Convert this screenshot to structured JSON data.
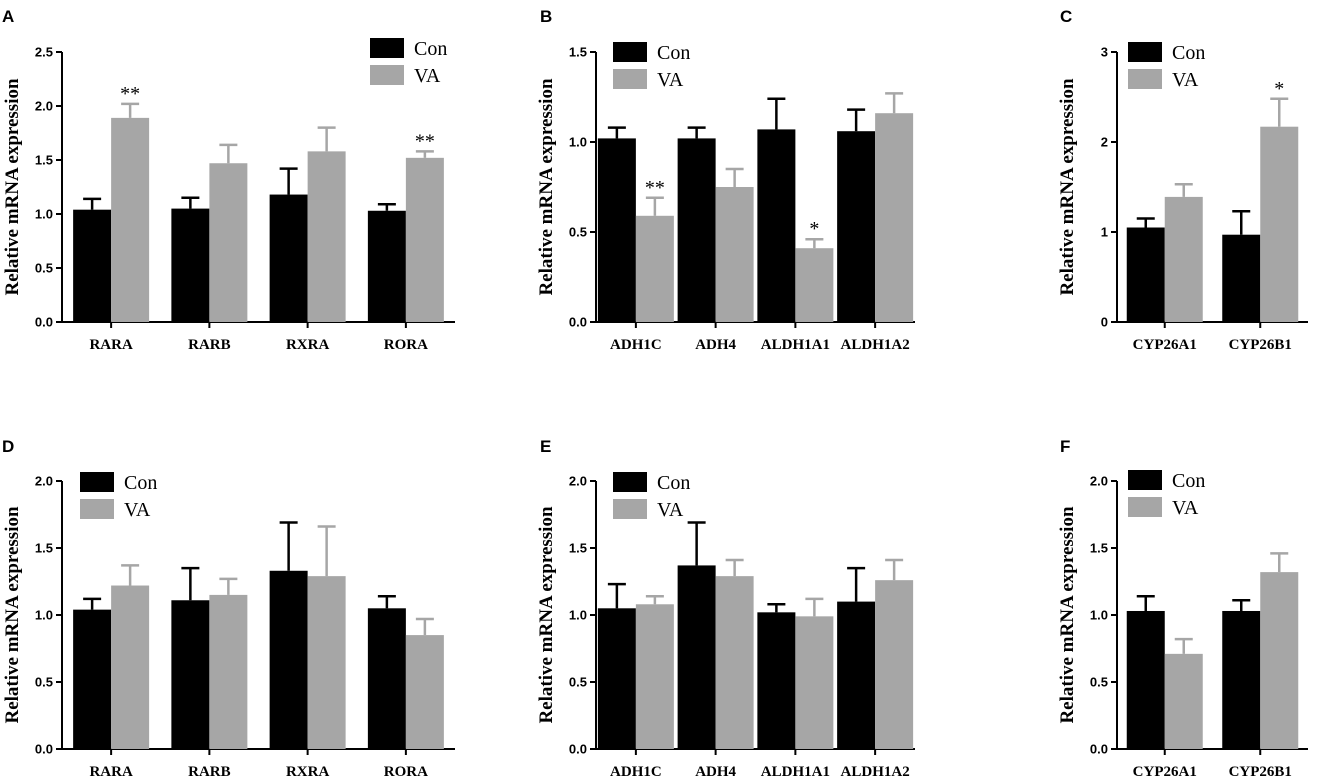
{
  "colors": {
    "con": "#000000",
    "va": "#a6a6a6"
  },
  "chart_data": [
    {
      "type": "bar",
      "panel": "A",
      "ylabel": "Relative mRNA expression",
      "categories": [
        "RARA",
        "RARB",
        "RXRA",
        "RORA"
      ],
      "ylim": [
        0,
        2.5
      ],
      "yticks": [
        "0.0",
        "0.5",
        "1.0",
        "1.5",
        "2.0",
        "2.5"
      ],
      "legend_position": "top-right",
      "series": [
        {
          "name": "Con",
          "values": [
            1.04,
            1.05,
            1.18,
            1.03
          ],
          "errors": [
            0.1,
            0.1,
            0.24,
            0.06
          ]
        },
        {
          "name": "VA",
          "values": [
            1.89,
            1.47,
            1.58,
            1.52
          ],
          "errors": [
            0.13,
            0.17,
            0.22,
            0.06
          ]
        }
      ],
      "annotations": [
        {
          "category": 0,
          "series": 1,
          "text": "**"
        },
        {
          "category": 3,
          "series": 1,
          "text": "**"
        }
      ]
    },
    {
      "type": "bar",
      "panel": "B",
      "ylabel": "Relative mRNA expression",
      "categories": [
        "ADH1C",
        "ADH4",
        "ALDH1A1",
        "ALDH1A2"
      ],
      "ylim": [
        0,
        1.5
      ],
      "yticks": [
        "0.0",
        "0.5",
        "1.0",
        "1.5"
      ],
      "legend_position": "top-left",
      "series": [
        {
          "name": "Con",
          "values": [
            1.02,
            1.02,
            1.07,
            1.06
          ],
          "errors": [
            0.06,
            0.06,
            0.17,
            0.12
          ]
        },
        {
          "name": "VA",
          "values": [
            0.59,
            0.75,
            0.41,
            1.16
          ],
          "errors": [
            0.1,
            0.1,
            0.05,
            0.11
          ]
        }
      ],
      "annotations": [
        {
          "category": 0,
          "series": 1,
          "text": "**"
        },
        {
          "category": 2,
          "series": 1,
          "text": "*"
        }
      ]
    },
    {
      "type": "bar",
      "panel": "C",
      "ylabel": "Relative mRNA expression",
      "categories": [
        "CYP26A1",
        "CYP26B1"
      ],
      "ylim": [
        0,
        3
      ],
      "yticks": [
        "0",
        "1",
        "2",
        "3"
      ],
      "legend_position": "top-left",
      "series": [
        {
          "name": "Con",
          "values": [
            1.05,
            0.97
          ],
          "errors": [
            0.1,
            0.26
          ]
        },
        {
          "name": "VA",
          "values": [
            1.39,
            2.17
          ],
          "errors": [
            0.14,
            0.31
          ]
        }
      ],
      "annotations": [
        {
          "category": 1,
          "series": 1,
          "text": "*"
        }
      ]
    },
    {
      "type": "bar",
      "panel": "D",
      "ylabel": "Relative mRNA expression",
      "categories": [
        "RARA",
        "RARB",
        "RXRA",
        "RORA"
      ],
      "ylim": [
        0,
        2.0
      ],
      "yticks": [
        "0.0",
        "0.5",
        "1.0",
        "1.5",
        "2.0"
      ],
      "legend_position": "top-left",
      "series": [
        {
          "name": "Con",
          "values": [
            1.04,
            1.11,
            1.33,
            1.05
          ],
          "errors": [
            0.08,
            0.24,
            0.36,
            0.09
          ]
        },
        {
          "name": "VA",
          "values": [
            1.22,
            1.15,
            1.29,
            0.85
          ],
          "errors": [
            0.15,
            0.12,
            0.37,
            0.12
          ]
        }
      ],
      "annotations": []
    },
    {
      "type": "bar",
      "panel": "E",
      "ylabel": "Relative mRNA expression",
      "categories": [
        "ADH1C",
        "ADH4",
        "ALDH1A1",
        "ALDH1A2"
      ],
      "ylim": [
        0,
        2.0
      ],
      "yticks": [
        "0.0",
        "0.5",
        "1.0",
        "1.5",
        "2.0"
      ],
      "legend_position": "top-left",
      "series": [
        {
          "name": "Con",
          "values": [
            1.05,
            1.37,
            1.02,
            1.1
          ],
          "errors": [
            0.18,
            0.32,
            0.06,
            0.25
          ]
        },
        {
          "name": "VA",
          "values": [
            1.08,
            1.29,
            0.99,
            1.26
          ],
          "errors": [
            0.06,
            0.12,
            0.13,
            0.15
          ]
        }
      ],
      "annotations": []
    },
    {
      "type": "bar",
      "panel": "F",
      "ylabel": "Relative mRNA expression",
      "categories": [
        "CYP26A1",
        "CYP26B1"
      ],
      "ylim": [
        0,
        2.0
      ],
      "yticks": [
        "0.0",
        "0.5",
        "1.0",
        "1.5",
        "2.0"
      ],
      "legend_position": "top-left",
      "series": [
        {
          "name": "Con",
          "values": [
            1.03,
            1.03
          ],
          "errors": [
            0.11,
            0.08
          ]
        },
        {
          "name": "VA",
          "values": [
            0.71,
            1.32
          ],
          "errors": [
            0.11,
            0.14
          ]
        }
      ],
      "annotations": []
    }
  ]
}
